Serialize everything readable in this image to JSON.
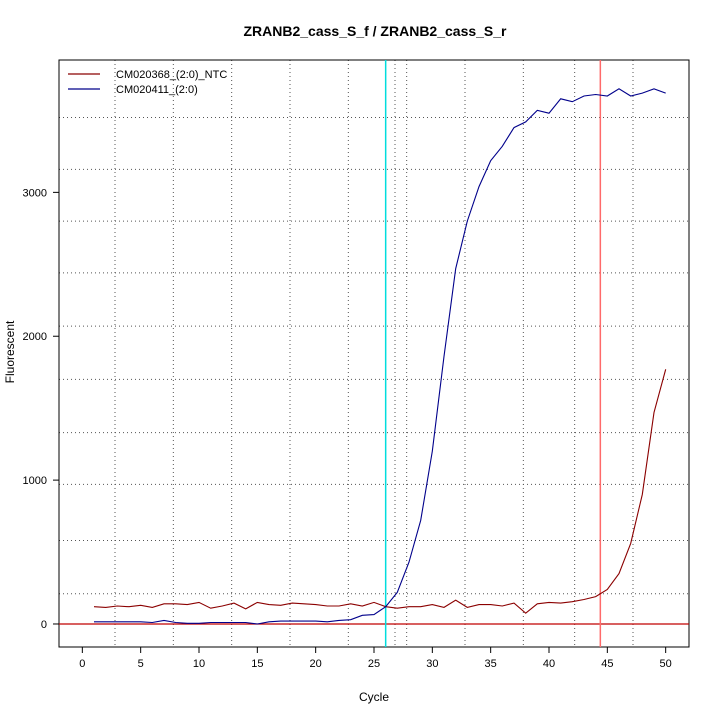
{
  "chart_data": {
    "type": "line",
    "title": "ZRANB2_cass_S_f / ZRANB2_cass_S_r",
    "xlabel": "Cycle",
    "ylabel": "Fluorescent",
    "xlim": [
      -2,
      52
    ],
    "ylim": [
      -160,
      3920
    ],
    "x_ticks": [
      0,
      5,
      10,
      15,
      20,
      25,
      30,
      35,
      40,
      45,
      50
    ],
    "y_ticks": [
      0,
      1000,
      2000,
      3000
    ],
    "x_grid": [
      2.8,
      7.8,
      12.8,
      17.8,
      22.8,
      26.8,
      27.8,
      32.8,
      37.8,
      42.2,
      47.2
    ],
    "y_grid": [
      210,
      580,
      970,
      1330,
      1700,
      2070,
      2440,
      2800,
      3160,
      3520
    ],
    "grid": true,
    "legend_position": "top-left",
    "vlines": [
      {
        "x": 26,
        "color": "#00dddd"
      },
      {
        "x": 44.4,
        "color": "#ff6a6a"
      }
    ],
    "hlines": [
      {
        "y": 0,
        "color": "#c00000"
      }
    ],
    "x": [
      1,
      2,
      3,
      4,
      5,
      6,
      7,
      8,
      9,
      10,
      11,
      12,
      13,
      14,
      15,
      16,
      17,
      18,
      19,
      20,
      21,
      22,
      23,
      24,
      25,
      26,
      27,
      28,
      29,
      30,
      31,
      32,
      33,
      34,
      35,
      36,
      37,
      38,
      39,
      40,
      41,
      42,
      43,
      44,
      45,
      46,
      47,
      48,
      49,
      50
    ],
    "series": [
      {
        "name": "CM020368_(2:0)_NTC",
        "color": "#8b0000",
        "values": [
          120,
          115,
          125,
          120,
          130,
          115,
          140,
          140,
          135,
          150,
          110,
          125,
          145,
          105,
          150,
          135,
          130,
          145,
          140,
          135,
          125,
          125,
          140,
          125,
          150,
          120,
          110,
          120,
          120,
          135,
          115,
          165,
          115,
          135,
          135,
          125,
          145,
          75,
          140,
          150,
          145,
          155,
          170,
          190,
          240,
          350,
          560,
          900,
          1470,
          1770
        ]
      },
      {
        "name": "CM020411_(2:0)",
        "color": "#00008b",
        "values": [
          15,
          15,
          15,
          15,
          15,
          10,
          25,
          10,
          5,
          5,
          10,
          10,
          10,
          10,
          0,
          15,
          20,
          20,
          20,
          20,
          15,
          25,
          30,
          60,
          65,
          120,
          220,
          430,
          720,
          1200,
          1860,
          2470,
          2800,
          3040,
          3220,
          3320,
          3450,
          3490,
          3570,
          3550,
          3650,
          3630,
          3670,
          3680,
          3670,
          3720,
          3670,
          3690,
          3720,
          3690
        ]
      }
    ]
  }
}
